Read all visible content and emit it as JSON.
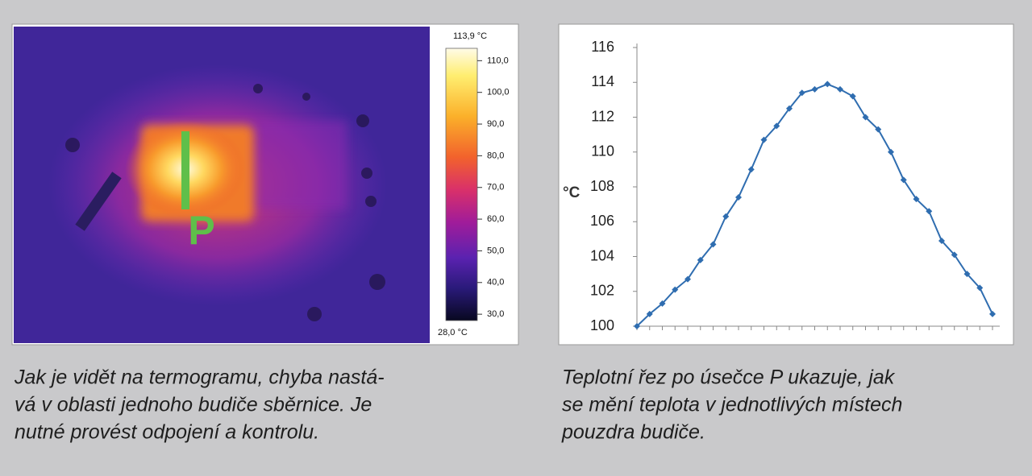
{
  "chart_data": [
    {
      "type": "colorbar",
      "max_label": "113,9 °C",
      "min_label": "28,0 °C",
      "clim": [
        28.0,
        113.9
      ],
      "cticks": [
        {
          "value": 110,
          "label": "110,0"
        },
        {
          "value": 100,
          "label": "100,0"
        },
        {
          "value": 90,
          "label": "90,0"
        },
        {
          "value": 80,
          "label": "80,0"
        },
        {
          "value": 70,
          "label": "70,0"
        },
        {
          "value": 60,
          "label": "60,0"
        },
        {
          "value": 50,
          "label": "50,0"
        },
        {
          "value": 40,
          "label": "40,0"
        },
        {
          "value": 30,
          "label": "30,0"
        }
      ]
    },
    {
      "type": "line",
      "y_label": "°C",
      "categories": [
        null,
        null,
        null,
        null,
        null,
        null,
        null,
        null,
        null,
        null,
        null,
        null,
        null,
        null,
        null,
        null,
        null,
        null,
        null,
        null,
        null,
        null,
        null,
        null,
        null,
        null,
        null,
        null,
        null
      ],
      "series": [
        {
          "color": "#2f6db0",
          "values": [
            100.0,
            100.7,
            101.3,
            102.1,
            102.7,
            103.8,
            104.7,
            106.3,
            107.4,
            109.0,
            110.7,
            111.5,
            112.5,
            113.4,
            113.6,
            113.9,
            113.6,
            113.2,
            112.0,
            111.3,
            110.0,
            108.4,
            107.3,
            106.6,
            104.9,
            104.1,
            103.0,
            102.2,
            100.7
          ]
        }
      ],
      "ylim": [
        100,
        116
      ],
      "yticks": [
        100,
        102,
        104,
        106,
        108,
        110,
        112,
        114,
        116
      ],
      "grid": false
    }
  ],
  "image": {
    "marker_label": "P"
  },
  "captions": [
    {
      "lines": [
        "Jak je vidět na termogramu, chyba nastá-",
        "vá v oblasti jednoho budiče sběrnice. Je",
        "nutné provést odpojení a kontrolu."
      ]
    },
    {
      "lines": [
        "Teplotní řez po úsečce P ukazuje, jak",
        "se mění teplota v jednotlivých místech",
        "pouzdra budiče."
      ]
    }
  ]
}
